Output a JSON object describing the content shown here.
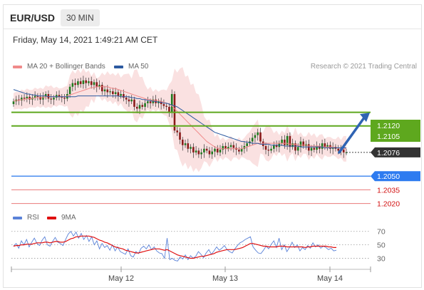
{
  "header": {
    "pair": "EUR/USD",
    "timeframe": "30 MIN"
  },
  "datetime": "Friday, May 14, 2021 1:49:21 AM CET",
  "legend": {
    "items": [
      {
        "label": "MA 20 + Bollinger Bands",
        "color": "#f08a8a"
      },
      {
        "label": "MA 50",
        "color": "#2c5aa0"
      }
    ],
    "credit": "Research © 2021 Trading Central"
  },
  "rsi_legend": {
    "items": [
      {
        "label": "RSI",
        "color": "#5a82d8"
      },
      {
        "label": "9MA",
        "color": "#e01010"
      }
    ]
  },
  "chart_data": [
    {
      "type": "candlestick",
      "ylim": [
        1.2015,
        1.2165
      ],
      "x_ticks": [
        "May 12",
        "May 13",
        "May 14"
      ],
      "current_price": 1.2076,
      "target_arrow": {
        "from": 1.2076,
        "to": 1.2118
      },
      "resistance": [
        1.212,
        1.2105
      ],
      "pivot": 1.205,
      "support": [
        1.2035,
        1.202
      ],
      "price_labels": [
        {
          "text": "1.2120",
          "value": 1.212,
          "kind": "resistance"
        },
        {
          "text": "1.2105",
          "value": 1.2105,
          "kind": "resistance"
        },
        {
          "text": "1.2076",
          "value": 1.2076,
          "kind": "current"
        },
        {
          "text": "1.2050",
          "value": 1.205,
          "kind": "pivot"
        },
        {
          "text": "1.2035",
          "value": 1.2035,
          "kind": "support"
        },
        {
          "text": "1.2020",
          "value": 1.202,
          "kind": "support"
        }
      ],
      "colors": {
        "resistance": "#5ea81e",
        "pivot": "#4a8ef0",
        "support": "#ea7a7a",
        "current": "#333333",
        "arrow": "#2f63b3",
        "bands": "#f6c8c8",
        "ma20": "#f08a8a",
        "ma50": "#2c5aa0"
      },
      "close": [
        1.2132,
        1.2134,
        1.2133,
        1.2136,
        1.2135,
        1.2137,
        1.2134,
        1.2136,
        1.2138,
        1.2137,
        1.2134,
        1.2137,
        1.214,
        1.2135,
        1.2134,
        1.2136,
        1.2139,
        1.2137,
        1.2136,
        1.2135,
        1.214,
        1.2148,
        1.2152,
        1.215,
        1.2154,
        1.2151,
        1.2155,
        1.2152,
        1.2154,
        1.215,
        1.2153,
        1.2148,
        1.215,
        1.2143,
        1.2145,
        1.2142,
        1.2143,
        1.214,
        1.2142,
        1.2138,
        1.214,
        1.2136,
        1.2134,
        1.2132,
        1.2134,
        1.2126,
        1.2124,
        1.2128,
        1.2126,
        1.213,
        1.2132,
        1.213,
        1.2134,
        1.213,
        1.2132,
        1.2129,
        1.2127,
        1.2126,
        1.212,
        1.214,
        1.21,
        1.2098,
        1.209,
        1.2084,
        1.2086,
        1.208,
        1.2082,
        1.2076,
        1.2078,
        1.2074,
        1.2076,
        1.208,
        1.2078,
        1.2074,
        1.2077,
        1.208,
        1.2076,
        1.2079,
        1.2083,
        1.208,
        1.2082,
        1.2084,
        1.2081,
        1.2079,
        1.2077,
        1.208,
        1.2083,
        1.2086,
        1.2088,
        1.2092,
        1.2095,
        1.2098,
        1.2088,
        1.2083,
        1.2079,
        1.2078,
        1.208,
        1.2084,
        1.2082,
        1.2086,
        1.209,
        1.2084,
        1.2094,
        1.2082,
        1.2086,
        1.2078,
        1.2082,
        1.2088,
        1.2083,
        1.2085,
        1.2078,
        1.2081,
        1.2079,
        1.2083,
        1.208,
        1.2086,
        1.2082,
        1.2084,
        1.208,
        1.2082,
        1.208,
        1.2078,
        1.2079,
        1.2076,
        1.2076
      ],
      "ma20": [
        1.2132,
        1.2133,
        1.2133,
        1.2134,
        1.2134,
        1.2135,
        1.2135,
        1.2135,
        1.2136,
        1.2136,
        1.2136,
        1.2136,
        1.2137,
        1.2137,
        1.2137,
        1.2137,
        1.2137,
        1.2137,
        1.2137,
        1.2137,
        1.2138,
        1.2139,
        1.214,
        1.2141,
        1.2142,
        1.2143,
        1.2144,
        1.2145,
        1.2146,
        1.2147,
        1.2147,
        1.2148,
        1.2148,
        1.2148,
        1.2148,
        1.2148,
        1.2147,
        1.2146,
        1.2146,
        1.2145,
        1.2144,
        1.2143,
        1.2142,
        1.2141,
        1.214,
        1.2139,
        1.2138,
        1.2137,
        1.2136,
        1.2135,
        1.2134,
        1.2134,
        1.2133,
        1.2133,
        1.2133,
        1.2132,
        1.2131,
        1.213,
        1.2129,
        1.2127,
        1.2124,
        1.2121,
        1.2118,
        1.2115,
        1.2112,
        1.2109,
        1.2106,
        1.2103,
        1.21,
        1.2097,
        1.2094,
        1.2091,
        1.2088,
        1.2086,
        1.2084,
        1.2082,
        1.2081,
        1.208,
        1.208,
        1.208,
        1.208,
        1.208,
        1.208,
        1.208,
        1.208,
        1.208,
        1.2081,
        1.2082,
        1.2083,
        1.2084,
        1.2085,
        1.2086,
        1.2086,
        1.2086,
        1.2086,
        1.2086,
        1.2086,
        1.2086,
        1.2086,
        1.2086,
        1.2086,
        1.2086,
        1.2086,
        1.2085,
        1.2085,
        1.2085,
        1.2084,
        1.2084,
        1.2084,
        1.2084,
        1.2083,
        1.2083,
        1.2083,
        1.2083,
        1.2083,
        1.2082,
        1.2082,
        1.2082,
        1.2082,
        1.2082,
        1.2081,
        1.2081,
        1.208,
        1.208,
        1.208
      ],
      "ma50": [
        1.2145,
        1.2144,
        1.2143,
        1.2142,
        1.2141,
        1.214,
        1.214,
        1.2139,
        1.2139,
        1.2138,
        1.2138,
        1.2138,
        1.2138,
        1.2137,
        1.2137,
        1.2137,
        1.2137,
        1.2137,
        1.2137,
        1.2137,
        1.2137,
        1.2137,
        1.2137,
        1.2137,
        1.2138,
        1.2138,
        1.2138,
        1.2138,
        1.2138,
        1.2138,
        1.2138,
        1.2138,
        1.2138,
        1.2138,
        1.2138,
        1.2138,
        1.2138,
        1.2138,
        1.2138,
        1.2138,
        1.2137,
        1.2137,
        1.2137,
        1.2137,
        1.2136,
        1.2136,
        1.2135,
        1.2135,
        1.2134,
        1.2134,
        1.2133,
        1.2133,
        1.2132,
        1.2132,
        1.2131,
        1.2131,
        1.213,
        1.213,
        1.2129,
        1.2128,
        1.2127,
        1.2126,
        1.2124,
        1.2122,
        1.212,
        1.2118,
        1.2116,
        1.2114,
        1.2112,
        1.211,
        1.2108,
        1.2106,
        1.2104,
        1.2102,
        1.21,
        1.2098,
        1.2097,
        1.2096,
        1.2095,
        1.2094,
        1.2093,
        1.2092,
        1.2091,
        1.209,
        1.2089,
        1.2088,
        1.2088,
        1.2087,
        1.2087,
        1.2086,
        1.2086,
        1.2086,
        1.2085,
        1.2085,
        1.2085,
        1.2085,
        1.2084,
        1.2084,
        1.2084,
        1.2084,
        1.2084,
        1.2083,
        1.2083,
        1.2083,
        1.2083,
        1.2083,
        1.2083,
        1.2082,
        1.2082,
        1.2082,
        1.2082,
        1.2082,
        1.2082,
        1.2082,
        1.2082,
        1.2082,
        1.2081,
        1.2081,
        1.2081,
        1.2081,
        1.2081,
        1.2081,
        1.2081,
        1.2081,
        1.2081
      ]
    },
    {
      "type": "line",
      "title": "RSI",
      "ylim": [
        20,
        75
      ],
      "y_ticks": [
        70,
        50,
        30
      ],
      "series": [
        {
          "name": "RSI",
          "color": "#5a82d8",
          "values": [
            48,
            52,
            45,
            56,
            50,
            58,
            47,
            54,
            60,
            52,
            49,
            57,
            62,
            50,
            48,
            55,
            61,
            54,
            52,
            49,
            58,
            66,
            70,
            63,
            69,
            60,
            67,
            58,
            64,
            55,
            62,
            50,
            56,
            44,
            52,
            46,
            49,
            42,
            50,
            41,
            47,
            40,
            38,
            36,
            44,
            34,
            32,
            40,
            37,
            45,
            48,
            44,
            50,
            43,
            47,
            41,
            38,
            37,
            30,
            60,
            28,
            30,
            27,
            26,
            32,
            29,
            35,
            28,
            34,
            30,
            33,
            40,
            36,
            31,
            38,
            43,
            36,
            41,
            47,
            42,
            45,
            49,
            43,
            40,
            38,
            44,
            49,
            53,
            55,
            58,
            60,
            62,
            47,
            42,
            38,
            37,
            42,
            48,
            44,
            51,
            56,
            46,
            60,
            43,
            50,
            40,
            46,
            54,
            46,
            50,
            41,
            46,
            43,
            49,
            45,
            53,
            47,
            50,
            45,
            48,
            46,
            43,
            45,
            41,
            42
          ]
        },
        {
          "name": "9MA",
          "color": "#e01010",
          "values": [
            48,
            49,
            49,
            50,
            50,
            51,
            51,
            51,
            52,
            53,
            53,
            53,
            54,
            54,
            53,
            54,
            55,
            55,
            54,
            54,
            55,
            57,
            59,
            60,
            62,
            62,
            63,
            63,
            63,
            63,
            62,
            61,
            59,
            57,
            56,
            54,
            53,
            51,
            49,
            47,
            46,
            45,
            44,
            42,
            41,
            40,
            39,
            38,
            38,
            39,
            40,
            41,
            42,
            43,
            44,
            44,
            44,
            43,
            42,
            43,
            41,
            39,
            37,
            35,
            34,
            33,
            32,
            31,
            30,
            30,
            31,
            32,
            33,
            33,
            34,
            35,
            36,
            37,
            39,
            40,
            41,
            42,
            43,
            43,
            43,
            43,
            44,
            45,
            46,
            48,
            50,
            52,
            52,
            51,
            50,
            49,
            48,
            48,
            47,
            47,
            47,
            47,
            48,
            48,
            48,
            47,
            47,
            47,
            47,
            47,
            47,
            47,
            46,
            47,
            47,
            48,
            48,
            48,
            48,
            48,
            48,
            47,
            47,
            46,
            46
          ]
        }
      ]
    }
  ]
}
